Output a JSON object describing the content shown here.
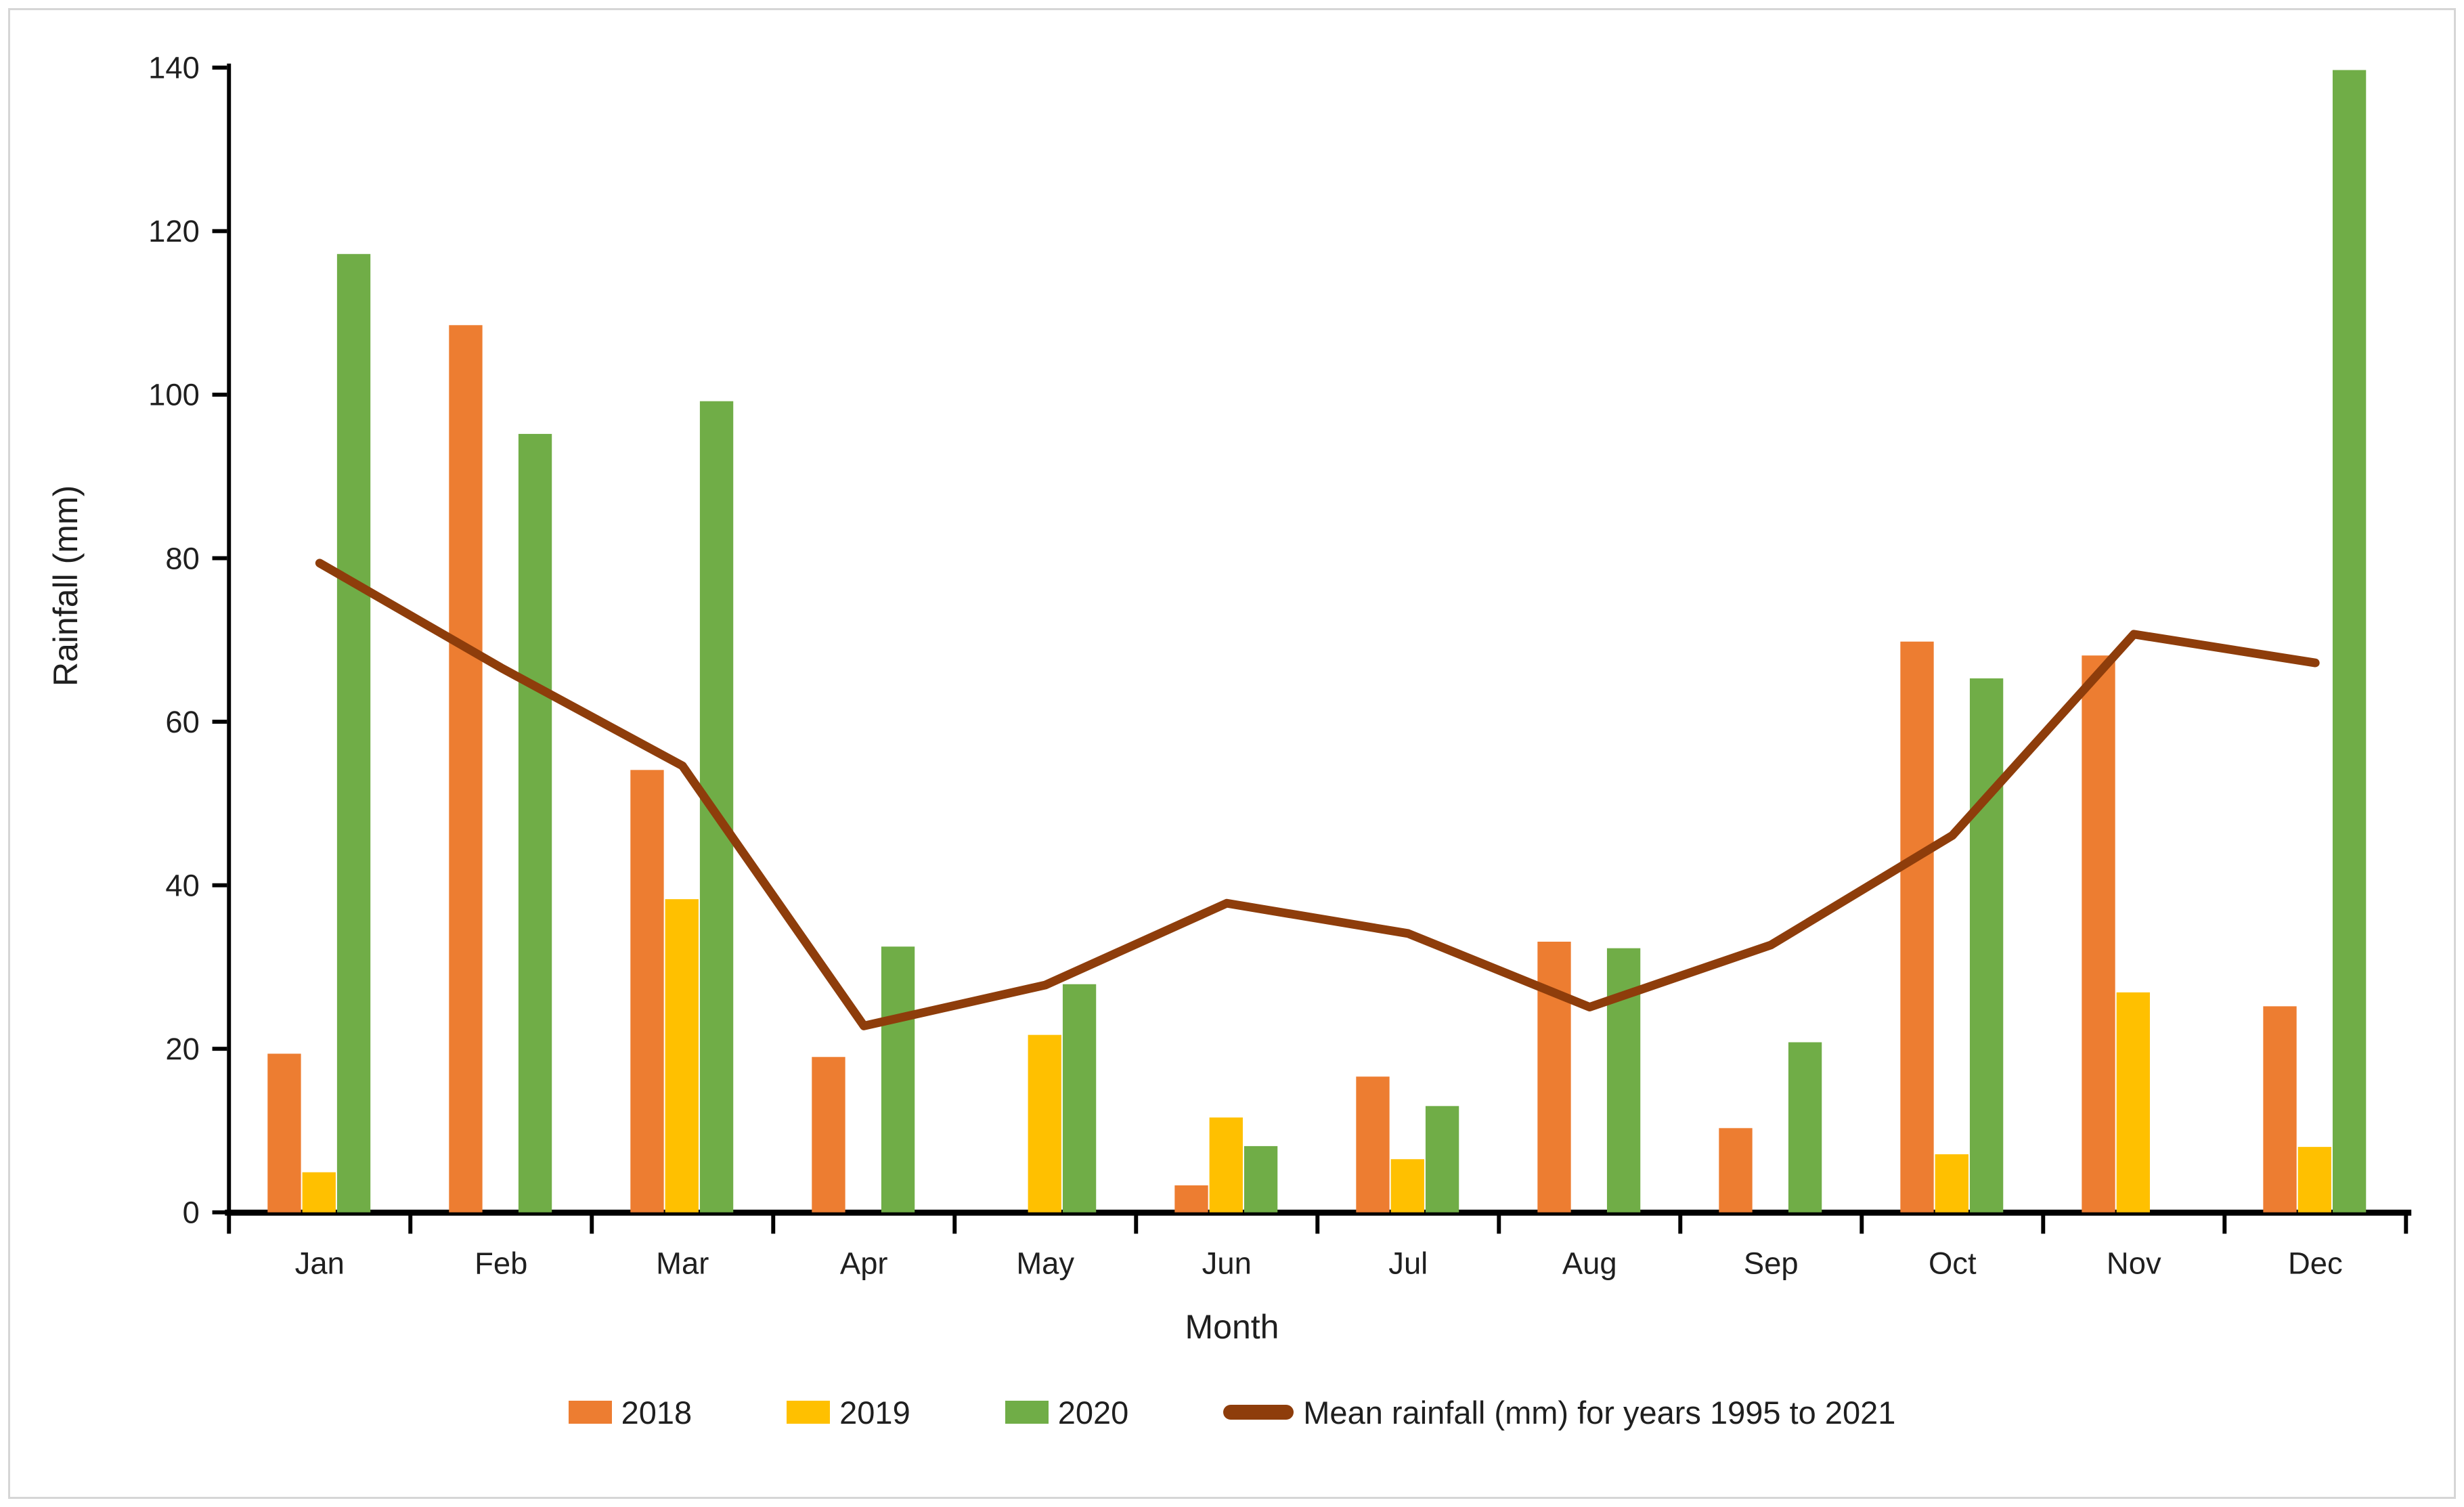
{
  "chart_data": {
    "type": "bar+line",
    "title": "",
    "xlabel": "Month",
    "ylabel": "Rainfall (mm)",
    "ylim": [
      0,
      140
    ],
    "ytick_step": 20,
    "ytick_labels": [
      "0",
      "20",
      "40",
      "60",
      "80",
      "100",
      "120",
      "140"
    ],
    "grid": false,
    "legend_position": "bottom",
    "categories": [
      "Jan",
      "Feb",
      "Mar",
      "Apr",
      "May",
      "Jun",
      "Jul",
      "Aug",
      "Sep",
      "Oct",
      "Nov",
      "Dec"
    ],
    "series": [
      {
        "name": "2018",
        "color": "#ED7D31",
        "values": [
          19.4,
          108.5,
          54.1,
          19.0,
          0,
          3.3,
          16.6,
          33.1,
          10.3,
          69.8,
          68.1,
          25.2
        ]
      },
      {
        "name": "2019",
        "color": "#FFC000",
        "values": [
          4.9,
          0,
          38.3,
          0,
          21.7,
          11.6,
          6.5,
          0,
          0,
          7.1,
          26.9,
          8.0
        ]
      },
      {
        "name": "2020",
        "color": "#70AD47",
        "values": [
          117.2,
          95.2,
          99.2,
          32.5,
          27.9,
          8.1,
          13.0,
          32.3,
          20.8,
          65.3,
          0,
          139.7
        ]
      }
    ],
    "line_series": {
      "name": "Mean rainfall (mm) for years 1995 to 2021",
      "color": "#8E3D0B",
      "values": [
        79.4,
        66.6,
        54.6,
        22.8,
        27.8,
        37.8,
        34.1,
        25.1,
        32.7,
        46.1,
        70.7,
        67.2
      ]
    },
    "axis_color": "#000000",
    "text_color": "#1f1f1f"
  },
  "labels": {
    "y_axis_title": "Rainfall (mm)",
    "x_axis_title": "Month"
  }
}
